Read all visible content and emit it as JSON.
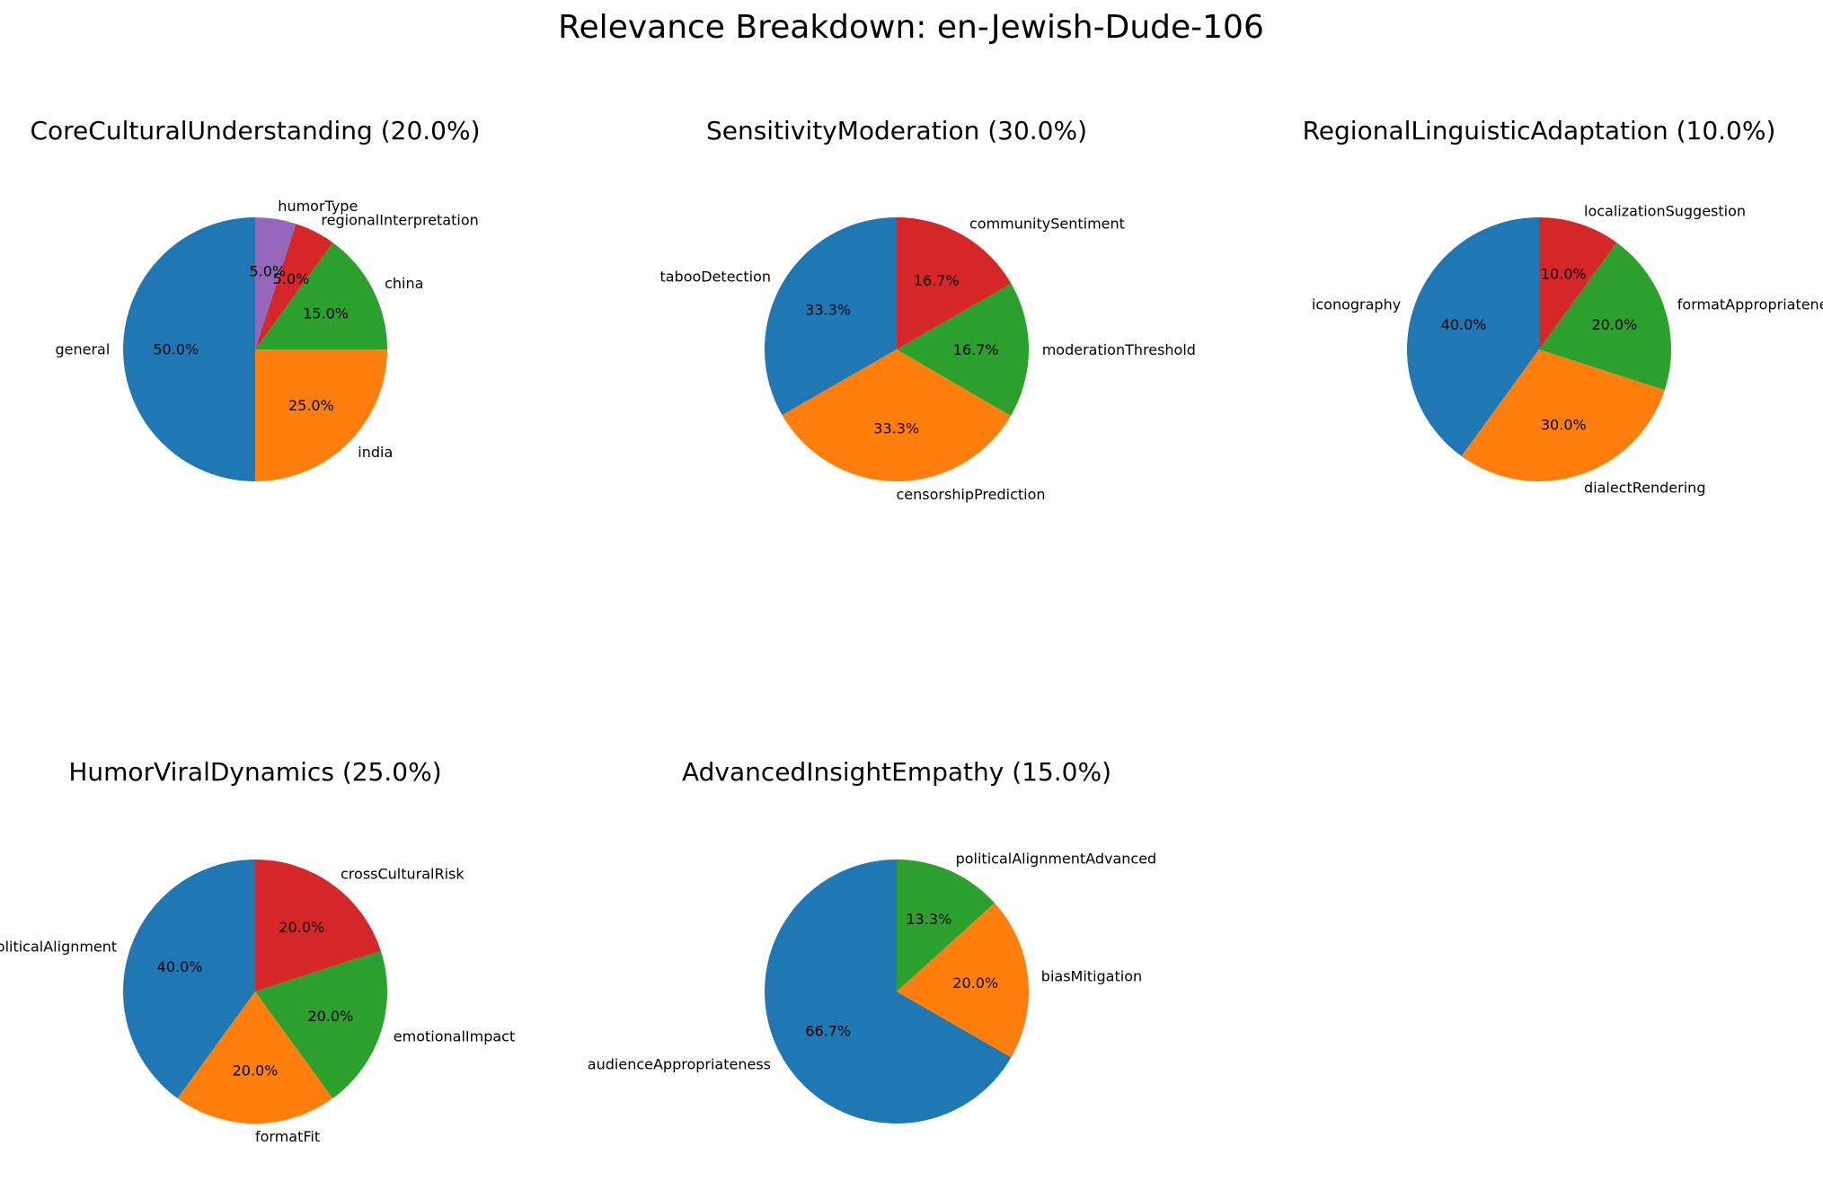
{
  "figure": {
    "suptitle": "Relevance Breakdown: en-Jewish-Dude-106"
  },
  "chart_data": [
    {
      "type": "pie",
      "title": "CoreCulturalUnderstanding (20.0%)",
      "slices": [
        {
          "label": "general",
          "value": 50.0,
          "pct_label": "50.0%",
          "color": "#1f77b4"
        },
        {
          "label": "india",
          "value": 25.0,
          "pct_label": "25.0%",
          "color": "#ff7f0e"
        },
        {
          "label": "china",
          "value": 15.0,
          "pct_label": "15.0%",
          "color": "#2ca02c"
        },
        {
          "label": "regionalInterpretation",
          "value": 5.0,
          "pct_label": "5.0%",
          "color": "#d62728"
        },
        {
          "label": "humorType",
          "value": 5.0,
          "pct_label": "5.0%",
          "color": "#9467bd"
        }
      ]
    },
    {
      "type": "pie",
      "title": "SensitivityModeration (30.0%)",
      "slices": [
        {
          "label": "tabooDetection",
          "value": 33.3,
          "pct_label": "33.3%",
          "color": "#1f77b4"
        },
        {
          "label": "censorshipPrediction",
          "value": 33.3,
          "pct_label": "33.3%",
          "color": "#ff7f0e"
        },
        {
          "label": "moderationThreshold",
          "value": 16.7,
          "pct_label": "16.7%",
          "color": "#2ca02c"
        },
        {
          "label": "communitySentiment",
          "value": 16.7,
          "pct_label": "16.7%",
          "color": "#d62728"
        }
      ]
    },
    {
      "type": "pie",
      "title": "RegionalLinguisticAdaptation (10.0%)",
      "slices": [
        {
          "label": "iconography",
          "value": 40.0,
          "pct_label": "40.0%",
          "color": "#1f77b4"
        },
        {
          "label": "dialectRendering",
          "value": 30.0,
          "pct_label": "30.0%",
          "color": "#ff7f0e"
        },
        {
          "label": "formatAppropriateness",
          "value": 20.0,
          "pct_label": "20.0%",
          "color": "#2ca02c"
        },
        {
          "label": "localizationSuggestion",
          "value": 10.0,
          "pct_label": "10.0%",
          "color": "#d62728"
        }
      ]
    },
    {
      "type": "pie",
      "title": "HumorViralDynamics (25.0%)",
      "slices": [
        {
          "label": "politicalAlignment",
          "value": 40.0,
          "pct_label": "40.0%",
          "color": "#1f77b4"
        },
        {
          "label": "formatFit",
          "value": 20.0,
          "pct_label": "20.0%",
          "color": "#ff7f0e"
        },
        {
          "label": "emotionalImpact",
          "value": 20.0,
          "pct_label": "20.0%",
          "color": "#2ca02c"
        },
        {
          "label": "crossCulturalRisk",
          "value": 20.0,
          "pct_label": "20.0%",
          "color": "#d62728"
        }
      ]
    },
    {
      "type": "pie",
      "title": "AdvancedInsightEmpathy (15.0%)",
      "slices": [
        {
          "label": "audienceAppropriateness",
          "value": 66.7,
          "pct_label": "66.7%",
          "color": "#1f77b4"
        },
        {
          "label": "biasMitigation",
          "value": 20.0,
          "pct_label": "20.0%",
          "color": "#ff7f0e"
        },
        {
          "label": "politicalAlignmentAdvanced",
          "value": 13.3,
          "pct_label": "13.3%",
          "color": "#2ca02c"
        }
      ]
    }
  ]
}
